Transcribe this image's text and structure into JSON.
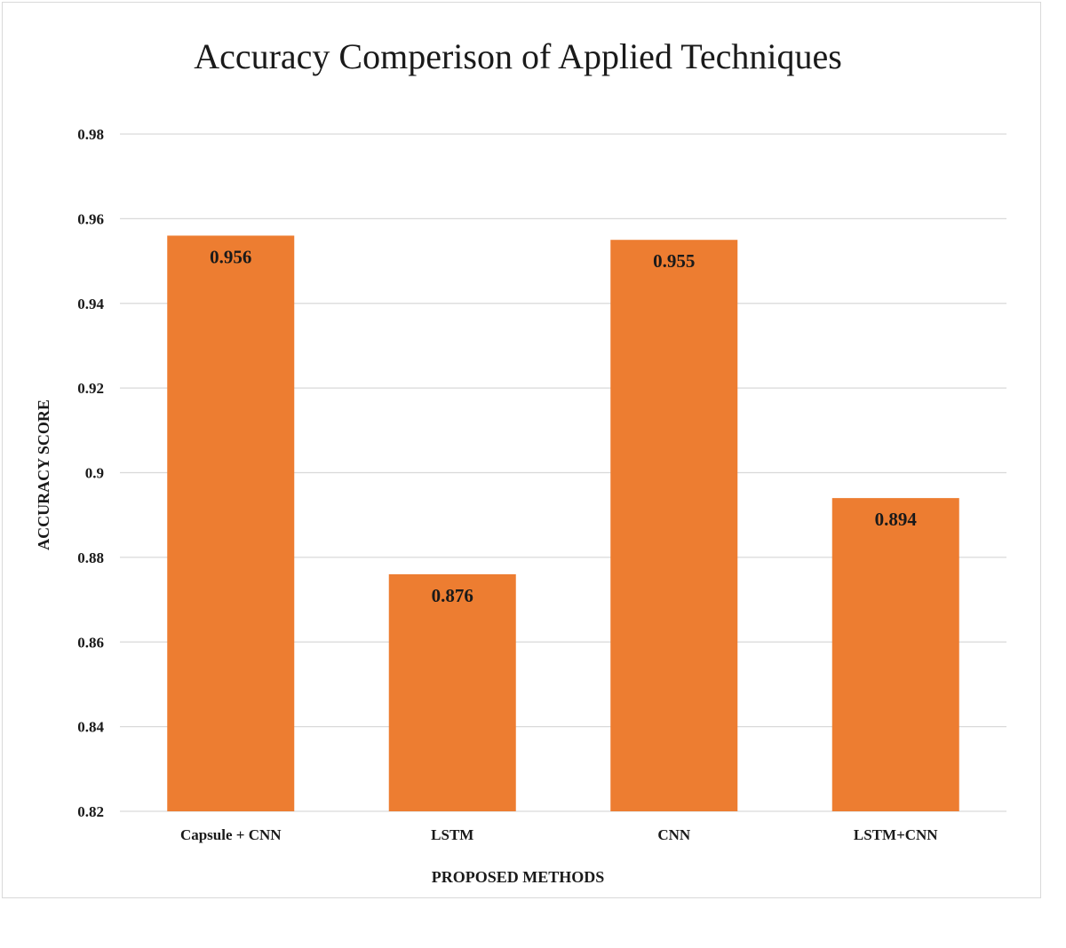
{
  "chart_data": {
    "type": "bar",
    "title": "Accuracy Comperison of Applied Techniques",
    "xlabel": "PROPOSED METHODS",
    "ylabel": "ACCURACY SCORE",
    "categories": [
      "Capsule + CNN",
      "LSTM",
      "CNN",
      "LSTM+CNN"
    ],
    "values": [
      0.956,
      0.876,
      0.955,
      0.894
    ],
    "data_labels": [
      "0.956",
      "0.876",
      "0.955",
      "0.894"
    ],
    "ylim": [
      0.82,
      0.98
    ],
    "yticks": [
      "0.98",
      "0.96",
      "0.94",
      "0.92",
      "0.9",
      "0.88",
      "0.86",
      "0.84",
      "0.82"
    ],
    "grid": true,
    "legend": "none",
    "bar_color": "#ED7D31"
  }
}
